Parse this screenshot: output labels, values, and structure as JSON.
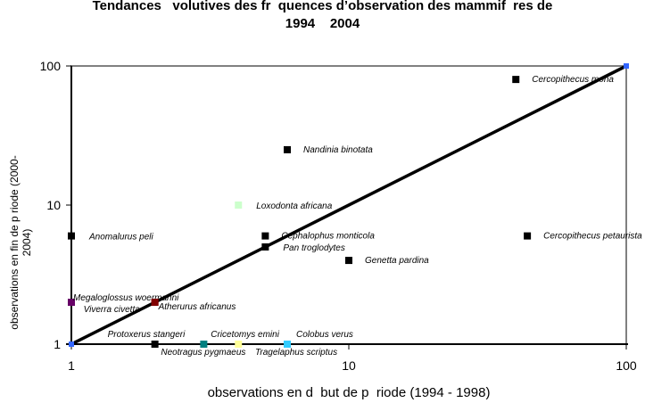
{
  "chart_data": {
    "type": "scatter",
    "title_line1": "Tendances   volutives des fr  quences d’observation des mammif  res de",
    "title_line2": "1994    2004",
    "xlabel": "observations en d  but de p  riode (1994 - 1998)",
    "ylabel_line1": "observations en fin de p riode (2000-",
    "ylabel_line2": "2004)",
    "x_scale": "log",
    "y_scale": "log",
    "xlim": [
      1,
      100
    ],
    "ylim": [
      1,
      100
    ],
    "x_ticks": [
      "1",
      "10",
      "100"
    ],
    "y_ticks": [
      "1",
      "10",
      "100"
    ],
    "grid": false,
    "reference_line": {
      "from": [
        1,
        1
      ],
      "to": [
        100,
        100
      ],
      "color": "#000000",
      "endpoint_color": "#3366ff"
    },
    "points": [
      {
        "label": "Cercopithecus mona",
        "x": 40,
        "y": 80,
        "color": "#000000"
      },
      {
        "label": "Nandinia binotata",
        "x": 6,
        "y": 25,
        "color": "#000000"
      },
      {
        "label": "Loxodonta africana",
        "x": 4,
        "y": 10,
        "color": "#ccffcc"
      },
      {
        "label": "Anomalurus peli",
        "x": 1,
        "y": 6,
        "color": "#000000"
      },
      {
        "label": "Cephalophus monticola",
        "x": 5,
        "y": 6,
        "color": "#000000"
      },
      {
        "label": "Cercopithecus petaurista",
        "x": 44,
        "y": 6,
        "color": "#000000"
      },
      {
        "label": "Pan troglodytes",
        "x": 5,
        "y": 5,
        "color": "#000000"
      },
      {
        "label": "Genetta pardina",
        "x": 10,
        "y": 4,
        "color": "#000000"
      },
      {
        "label": "Megaloglossus woermanni",
        "x": 1,
        "y": 2,
        "color": "#660066"
      },
      {
        "label": "Viverra civetta",
        "x": 2,
        "y": 2,
        "color": "#800000"
      },
      {
        "label": "Atherurus africanus",
        "x": 2,
        "y": 2,
        "color": "#800000"
      },
      {
        "label": "Protoxerus stangeri",
        "x": 2,
        "y": 1,
        "color": "#000000"
      },
      {
        "label": "Neotragus pygmaeus",
        "x": 3,
        "y": 1,
        "color": "#008080"
      },
      {
        "label": "Cricetomys emini",
        "x": 4,
        "y": 1,
        "color": "#ffff99"
      },
      {
        "label": "Tragelaphus scriptus",
        "x": 6,
        "y": 1,
        "color": "#33ccff"
      },
      {
        "label": "Colobus verus",
        "x": 6,
        "y": 1,
        "color": "#33ccff"
      }
    ]
  }
}
